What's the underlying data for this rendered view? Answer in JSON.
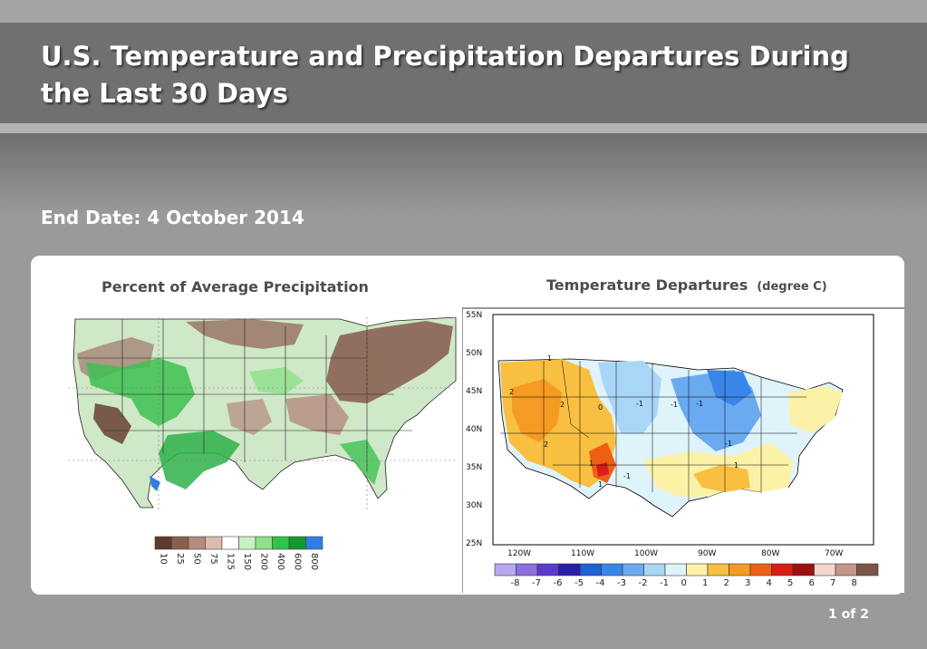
{
  "slide": {
    "title": "U.S. Temperature and Precipitation Departures During the Last 30 Days",
    "subtitle": "End Date: 4 October 2014",
    "page_indicator": "1 of 2"
  },
  "precip_map": {
    "title": "Percent of Average Precipitation",
    "scale": [
      {
        "label": "10",
        "color": "#5e3b2f"
      },
      {
        "label": "25",
        "color": "#8c5e4c"
      },
      {
        "label": "50",
        "color": "#b58c7e"
      },
      {
        "label": "75",
        "color": "#d9bbb0"
      },
      {
        "label": "125",
        "color": "#ffffff"
      },
      {
        "label": "150",
        "color": "#c8f2c0"
      },
      {
        "label": "200",
        "color": "#8fe08a"
      },
      {
        "label": "400",
        "color": "#33c24a"
      },
      {
        "label": "600",
        "color": "#139a2c"
      },
      {
        "label": "800",
        "color": "#2f7fe0"
      }
    ]
  },
  "temp_map": {
    "title": "Temperature Departures",
    "unit": "(degree C)",
    "lat_labels": [
      "55N",
      "50N",
      "45N",
      "40N",
      "35N",
      "30N",
      "25N"
    ],
    "lon_labels": [
      "120W",
      "110W",
      "100W",
      "90W",
      "80W",
      "70W"
    ],
    "contour_labels": [
      "1",
      "2",
      "2",
      "0",
      "-1",
      "-1",
      "-1",
      "2",
      "-1",
      "1",
      "1",
      "1",
      "-1"
    ],
    "scale": [
      {
        "label": "-8",
        "color": "#b9a7f0"
      },
      {
        "label": "-7",
        "color": "#8e6fe0"
      },
      {
        "label": "-6",
        "color": "#5a3ad0"
      },
      {
        "label": "-5",
        "color": "#2a1fa8"
      },
      {
        "label": "-4",
        "color": "#1f5fd8"
      },
      {
        "label": "-3",
        "color": "#3a86e8"
      },
      {
        "label": "-2",
        "color": "#6aaaf0"
      },
      {
        "label": "-1",
        "color": "#a8d6f7"
      },
      {
        "label": "0",
        "color": "#dff3fb"
      },
      {
        "label": "1",
        "color": "#fbf2a8"
      },
      {
        "label": "2",
        "color": "#f8bf40"
      },
      {
        "label": "3",
        "color": "#f59a22"
      },
      {
        "label": "4",
        "color": "#ee5f16"
      },
      {
        "label": "5",
        "color": "#d81e14"
      },
      {
        "label": "6",
        "color": "#9e0f10"
      },
      {
        "label": "7",
        "color": "#f4d6cc"
      },
      {
        "label": "8",
        "color": "#c0978a"
      },
      {
        "label": "",
        "color": "#7a5648"
      }
    ]
  }
}
